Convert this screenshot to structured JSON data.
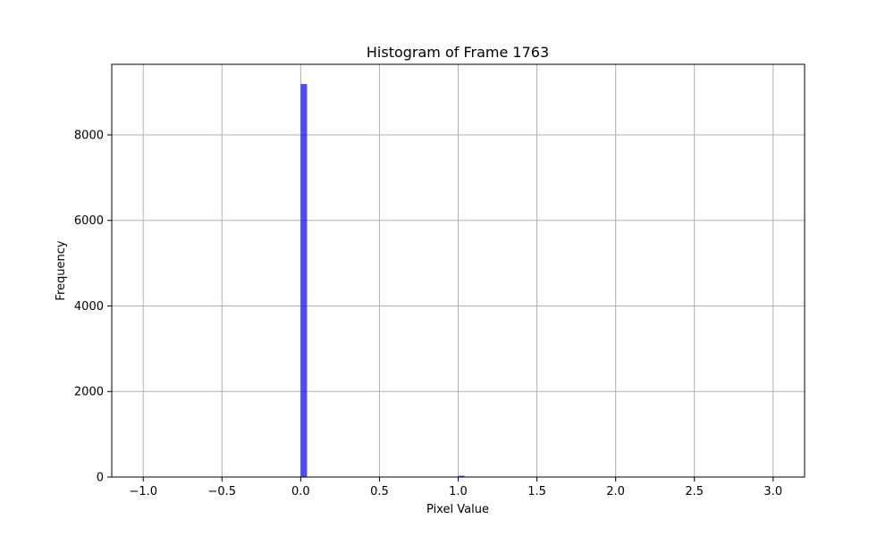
{
  "chart_data": {
    "type": "bar",
    "title": "Histogram of Frame 1763",
    "xlabel": "Pixel Value",
    "ylabel": "Frequency",
    "xlim": [
      -1.2,
      3.2
    ],
    "ylim": [
      0,
      9650
    ],
    "x_ticks": [
      {
        "value": -1.0,
        "label": "−1.0"
      },
      {
        "value": -0.5,
        "label": "−0.5"
      },
      {
        "value": 0.0,
        "label": "0.0"
      },
      {
        "value": 0.5,
        "label": "0.5"
      },
      {
        "value": 1.0,
        "label": "1.0"
      },
      {
        "value": 1.5,
        "label": "1.5"
      },
      {
        "value": 2.0,
        "label": "2.0"
      },
      {
        "value": 2.5,
        "label": "2.5"
      },
      {
        "value": 3.0,
        "label": "3.0"
      }
    ],
    "y_ticks": [
      {
        "value": 0,
        "label": "0"
      },
      {
        "value": 2000,
        "label": "2000"
      },
      {
        "value": 4000,
        "label": "4000"
      },
      {
        "value": 6000,
        "label": "6000"
      },
      {
        "value": 8000,
        "label": "8000"
      }
    ],
    "grid": true,
    "bins": [
      {
        "x0": -1.0,
        "x1": -0.96,
        "count": 1
      },
      {
        "x0": 0.0,
        "x1": 0.04,
        "count": 9190
      },
      {
        "x0": 1.0,
        "x1": 1.04,
        "count": 30
      },
      {
        "x0": 2.0,
        "x1": 2.04,
        "count": 4
      },
      {
        "x0": 2.96,
        "x1": 3.0,
        "count": 1
      }
    ],
    "bar_color": "#0000ff",
    "bar_opacity": 0.7
  }
}
